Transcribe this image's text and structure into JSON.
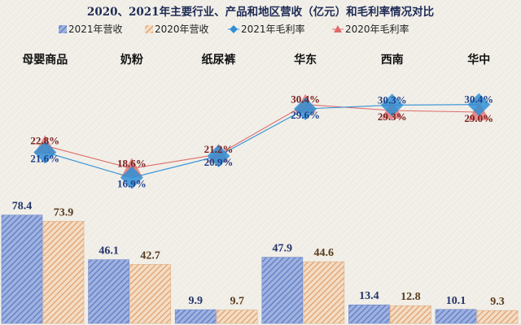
{
  "chart_data": {
    "type": "bar",
    "title": "2020、2021年主要行业、产品和地区营收（亿元）和毛利率情况对比",
    "categories": [
      "母婴商品",
      "奶粉",
      "纸尿裤",
      "华东",
      "西南",
      "华中"
    ],
    "series": [
      {
        "name": "2021年营收",
        "type": "bar",
        "values": [
          78.4,
          46.1,
          9.9,
          47.9,
          13.4,
          10.1
        ],
        "labels": [
          "78.4",
          "46.1",
          "9.9",
          "47.9",
          "13.4",
          "10.1"
        ],
        "color": "#5b78c2"
      },
      {
        "name": "2020年营收",
        "type": "bar",
        "values": [
          73.9,
          42.7,
          9.7,
          44.6,
          12.8,
          9.3
        ],
        "labels": [
          "73.9",
          "42.7",
          "9.7",
          "44.6",
          "12.8",
          "9.3"
        ],
        "color": "#e0a878"
      },
      {
        "name": "2021年毛利率",
        "type": "line",
        "values": [
          21.6,
          16.9,
          20.9,
          29.6,
          30.3,
          30.4
        ],
        "labels": [
          "21.6%",
          "16.9%",
          "20.9%",
          "29.6%",
          "30.3%",
          "30.4%"
        ],
        "color": "#2f8fd6",
        "marker": "diamond"
      },
      {
        "name": "2020年毛利率",
        "type": "line",
        "values": [
          22.8,
          18.6,
          21.2,
          30.4,
          29.3,
          29.0
        ],
        "labels": [
          "22.8%",
          "18.6%",
          "21.2%",
          "30.4%",
          "29.3%",
          "29.0%"
        ],
        "color": "#e06a6a",
        "marker": "triangle"
      }
    ],
    "bar_axis": {
      "ylim": [
        0,
        100
      ],
      "visible": false
    },
    "line_axis": {
      "ylim": [
        5,
        32
      ],
      "visible": false
    },
    "legend": "top",
    "grid": false,
    "category_labels_position": "top"
  }
}
